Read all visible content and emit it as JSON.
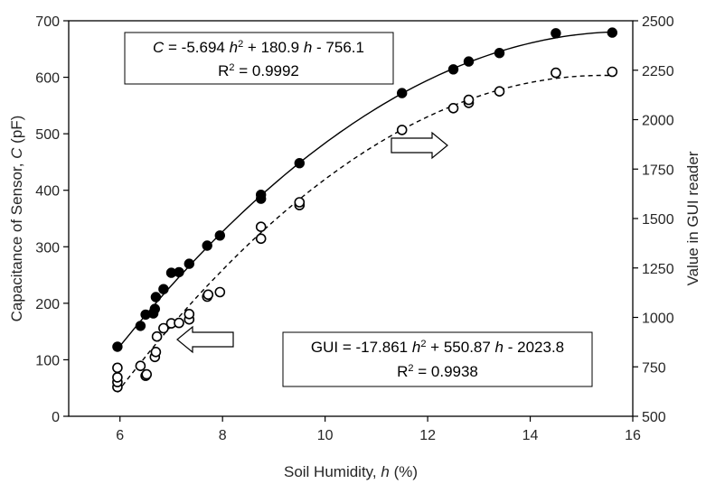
{
  "chart_data": {
    "type": "scatter",
    "xlabel_text": "Soil Humidity, ",
    "xlabel_var": "h",
    "xlabel_unit": " (%)",
    "ylabel_text": "Capacitance of Sensor, ",
    "ylabel_var": "C",
    "ylabel_unit": " (pF)",
    "y2label": "Value in GUI reader",
    "xlim": [
      5,
      16
    ],
    "ylim": [
      0,
      700
    ],
    "y2lim": [
      500,
      2500
    ],
    "xticks": [
      6,
      8,
      10,
      12,
      14,
      16
    ],
    "yticks": [
      0,
      100,
      200,
      300,
      400,
      500,
      600,
      700
    ],
    "y2ticks": [
      500,
      750,
      1000,
      1250,
      1500,
      1750,
      2000,
      2250,
      2500
    ],
    "grid": false,
    "series": [
      {
        "marker": "filled-circle",
        "axis": "left",
        "x": [
          5.95,
          6.4,
          6.5,
          6.65,
          6.68,
          6.7,
          6.85,
          7.0,
          7.15,
          7.35,
          7.7,
          7.95,
          8.75,
          8.75,
          9.5,
          11.5,
          12.5,
          12.8,
          13.4,
          14.5,
          15.6
        ],
        "y": [
          123,
          160,
          180,
          182,
          190,
          211,
          225,
          254,
          255,
          270,
          302,
          320,
          385,
          392,
          448,
          572,
          614,
          628,
          643,
          678,
          679
        ]
      },
      {
        "marker": "open-circle",
        "axis": "right",
        "x": [
          5.95,
          5.95,
          5.95,
          5.95,
          6.4,
          6.5,
          6.52,
          6.68,
          6.7,
          6.72,
          6.85,
          7.0,
          7.15,
          7.35,
          7.35,
          7.7,
          7.72,
          7.95,
          8.75,
          8.75,
          9.5,
          9.5,
          11.5,
          12.5,
          12.8,
          12.8,
          13.4,
          14.5,
          15.6
        ],
        "y": [
          648,
          673,
          697,
          745,
          755,
          705,
          712,
          800,
          825,
          903,
          945,
          970,
          972,
          990,
          1017,
          1105,
          1115,
          1128,
          1398,
          1458,
          1568,
          1582,
          1948,
          2058,
          2085,
          2100,
          2143,
          2237,
          2242
        ]
      }
    ],
    "fits": [
      {
        "axis": "left",
        "style": "solid",
        "a": -5.694,
        "b": 180.9,
        "c": -756.1,
        "range": [
          5.95,
          15.6
        ],
        "equation": {
          "lhs_var": "C",
          "part1": " = -5.694 ",
          "var": "h",
          "sup": "2",
          "part2": " + 180.9 ",
          "part3": " - 756.1",
          "r2_text": "R",
          "r2_sup": "2",
          "r2_value": " = 0.9992"
        }
      },
      {
        "axis": "right",
        "style": "dashed",
        "a": -17.861,
        "b": 550.87,
        "c": -2023.8,
        "range": [
          5.95,
          15.6
        ],
        "equation": {
          "lhs_text": "GUI",
          "part1": " = -17.861 ",
          "var": "h",
          "sup": "2",
          "part2": " + 550.87 ",
          "part3": " - 2023.8",
          "r2_text": "R",
          "r2_sup": "2",
          "r2_value": " = 0.9938"
        }
      }
    ],
    "annotations": [
      {
        "type": "arrow",
        "direction": "left",
        "indicates": "left-axis"
      },
      {
        "type": "arrow",
        "direction": "right",
        "indicates": "right-axis"
      }
    ]
  }
}
